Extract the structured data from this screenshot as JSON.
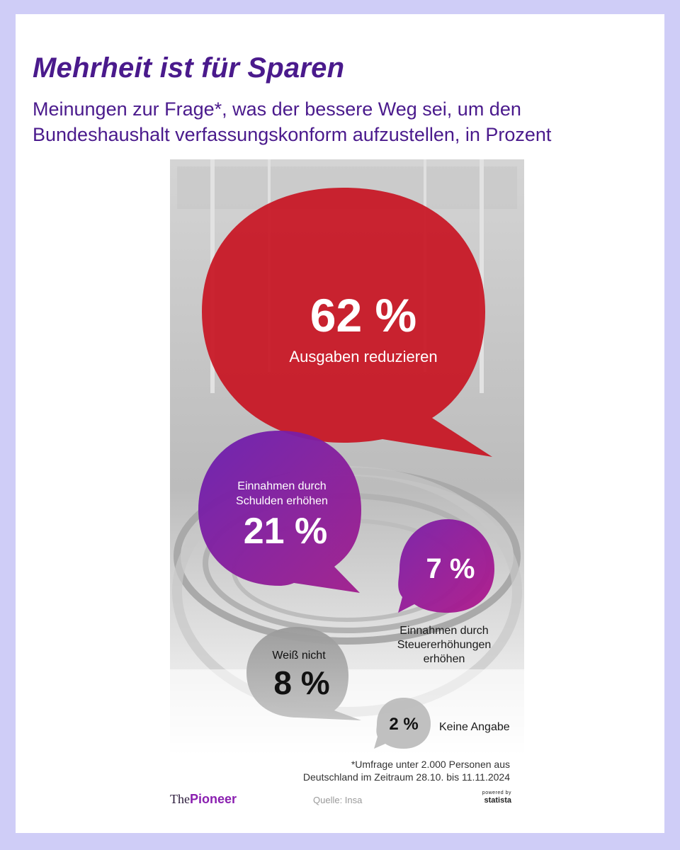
{
  "header": {
    "title": "Mehrheit ist für Sparen",
    "subtitle": "Meinungen zur Frage*, was der bessere Weg sei, um den Bundeshaushalt verfassungskonform aufzustellen, in Prozent"
  },
  "chart_data": {
    "type": "pie",
    "categories": [
      "Ausgaben reduzieren",
      "Einnahmen durch Schulden erhöhen",
      "Einnahmen durch Steuererhöhungen erhöhen",
      "Weiß nicht",
      "Keine Angabe"
    ],
    "values": [
      62,
      21,
      7,
      8,
      2
    ],
    "value_labels": [
      "62 %",
      "21 %",
      "7 %",
      "8 %",
      "2 %"
    ],
    "unit": "Prozent",
    "colors": [
      "#c8101e",
      "#7a1fa8",
      "#8a1b8a",
      "#8c8c8c",
      "#bdbdbd"
    ]
  },
  "bubbles": {
    "spend": {
      "value": "62 %",
      "label": "Ausgaben reduzieren"
    },
    "debt": {
      "value": "21 %",
      "label_line1": "Einnahmen durch",
      "label_line2": "Schulden erhöhen"
    },
    "tax": {
      "value": "7 %",
      "label_line1": "Einnahmen durch",
      "label_line2": "Steuererhöhungen",
      "label_line3": "erhöhen"
    },
    "dontknow": {
      "value": "8 %",
      "label": "Weiß nicht"
    },
    "noanswer": {
      "value": "2 %",
      "label": "Keine Angabe"
    }
  },
  "footer": {
    "footnote_line1": "*Umfrage unter 2.000 Personen aus",
    "footnote_line2": "Deutschland im Zeitraum 28.10. bis 11.11.2024",
    "logo_the": "The",
    "logo_pioneer": "Pioneer",
    "source": "Quelle: Insa",
    "powered_by": "powered by",
    "statista": "statista"
  },
  "colors": {
    "background": "#cfcdf7",
    "title": "#4a1a8c",
    "red": "#c8101e",
    "purple": "#7a1fa8",
    "grey": "#8c8c8c"
  }
}
